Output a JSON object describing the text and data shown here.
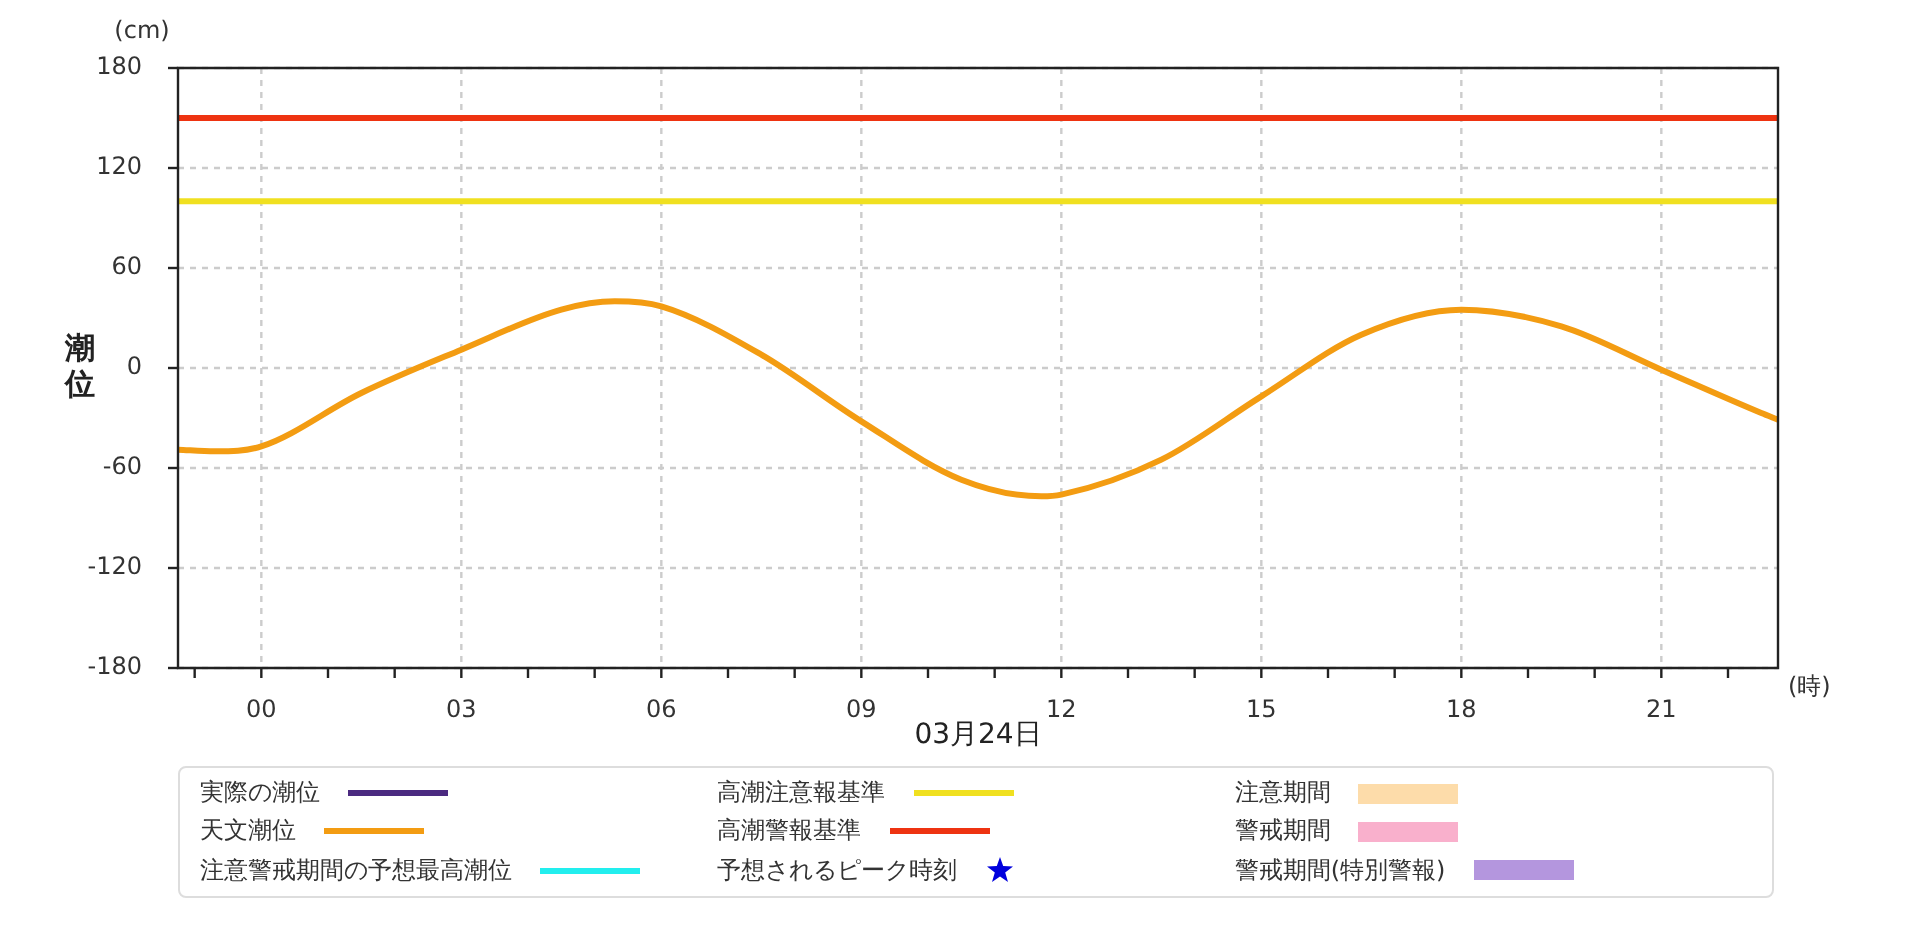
{
  "chart_data": {
    "type": "line",
    "xlabel": "03月24日",
    "ylabel": "潮位",
    "annotations": [
      "(cm)",
      "(時)"
    ],
    "xlim": [
      -1.25,
      22.75
    ],
    "ylim": [
      -180,
      180
    ],
    "xticks": [
      {
        "value": -1,
        "label": null
      },
      {
        "value": 0,
        "label": "00"
      },
      {
        "value": 1,
        "label": null
      },
      {
        "value": 2,
        "label": null
      },
      {
        "value": 3,
        "label": "03"
      },
      {
        "value": 4,
        "label": null
      },
      {
        "value": 5,
        "label": null
      },
      {
        "value": 6,
        "label": "06"
      },
      {
        "value": 7,
        "label": null
      },
      {
        "value": 8,
        "label": null
      },
      {
        "value": 9,
        "label": "09"
      },
      {
        "value": 10,
        "label": null
      },
      {
        "value": 11,
        "label": null
      },
      {
        "value": 12,
        "label": "12"
      },
      {
        "value": 13,
        "label": null
      },
      {
        "value": 14,
        "label": null
      },
      {
        "value": 15,
        "label": "15"
      },
      {
        "value": 16,
        "label": null
      },
      {
        "value": 17,
        "label": null
      },
      {
        "value": 18,
        "label": "18"
      },
      {
        "value": 19,
        "label": null
      },
      {
        "value": 20,
        "label": null
      },
      {
        "value": 21,
        "label": "21"
      },
      {
        "value": 22,
        "label": null
      }
    ],
    "yticks": [
      -180,
      -120,
      -60,
      0,
      60,
      120,
      180
    ],
    "grid": true,
    "legend": "bottom",
    "marker": "none",
    "line_style": "solid",
    "series": [
      {
        "name": "実際の潮位",
        "color": "#4b2a80"
      },
      {
        "name": "天文潮位",
        "color": "#f39c12",
        "x": [
          -1.25,
          -0.7,
          0,
          1.5,
          3,
          4.5,
          5.3,
          6,
          7.5,
          9,
          10.5,
          11.7,
          12,
          13.5,
          15,
          16.5,
          18,
          19.5,
          21,
          22.5,
          22.75
        ],
        "values": [
          -49,
          -50,
          -47,
          -15,
          11,
          35,
          40,
          37,
          8,
          -32,
          -67,
          -77,
          -76,
          -55,
          -17,
          20,
          35,
          25,
          -1,
          -27,
          -31
        ]
      },
      {
        "name": "注意警戒期間の予想最高潮位",
        "color": "#22eeee"
      },
      {
        "name": "高潮注意報基準",
        "color": "#f0e020",
        "x": [
          -1.25,
          22.75
        ],
        "values": [
          100,
          100
        ]
      },
      {
        "name": "高潮警報基準",
        "color": "#ee3311",
        "x": [
          -1.25,
          22.75
        ],
        "values": [
          150,
          150
        ]
      },
      {
        "name": "予想されるピーク時刻",
        "type": "scatter",
        "marker": "star",
        "color": "#0000dd"
      },
      {
        "name": "注意期間",
        "type": "bar",
        "color": "#fddcaa"
      },
      {
        "name": "警戒期間",
        "type": "bar",
        "color": "#f9b0cc"
      },
      {
        "name": "警戒期間(特別警報)",
        "type": "bar",
        "color": "#b496de"
      }
    ]
  }
}
